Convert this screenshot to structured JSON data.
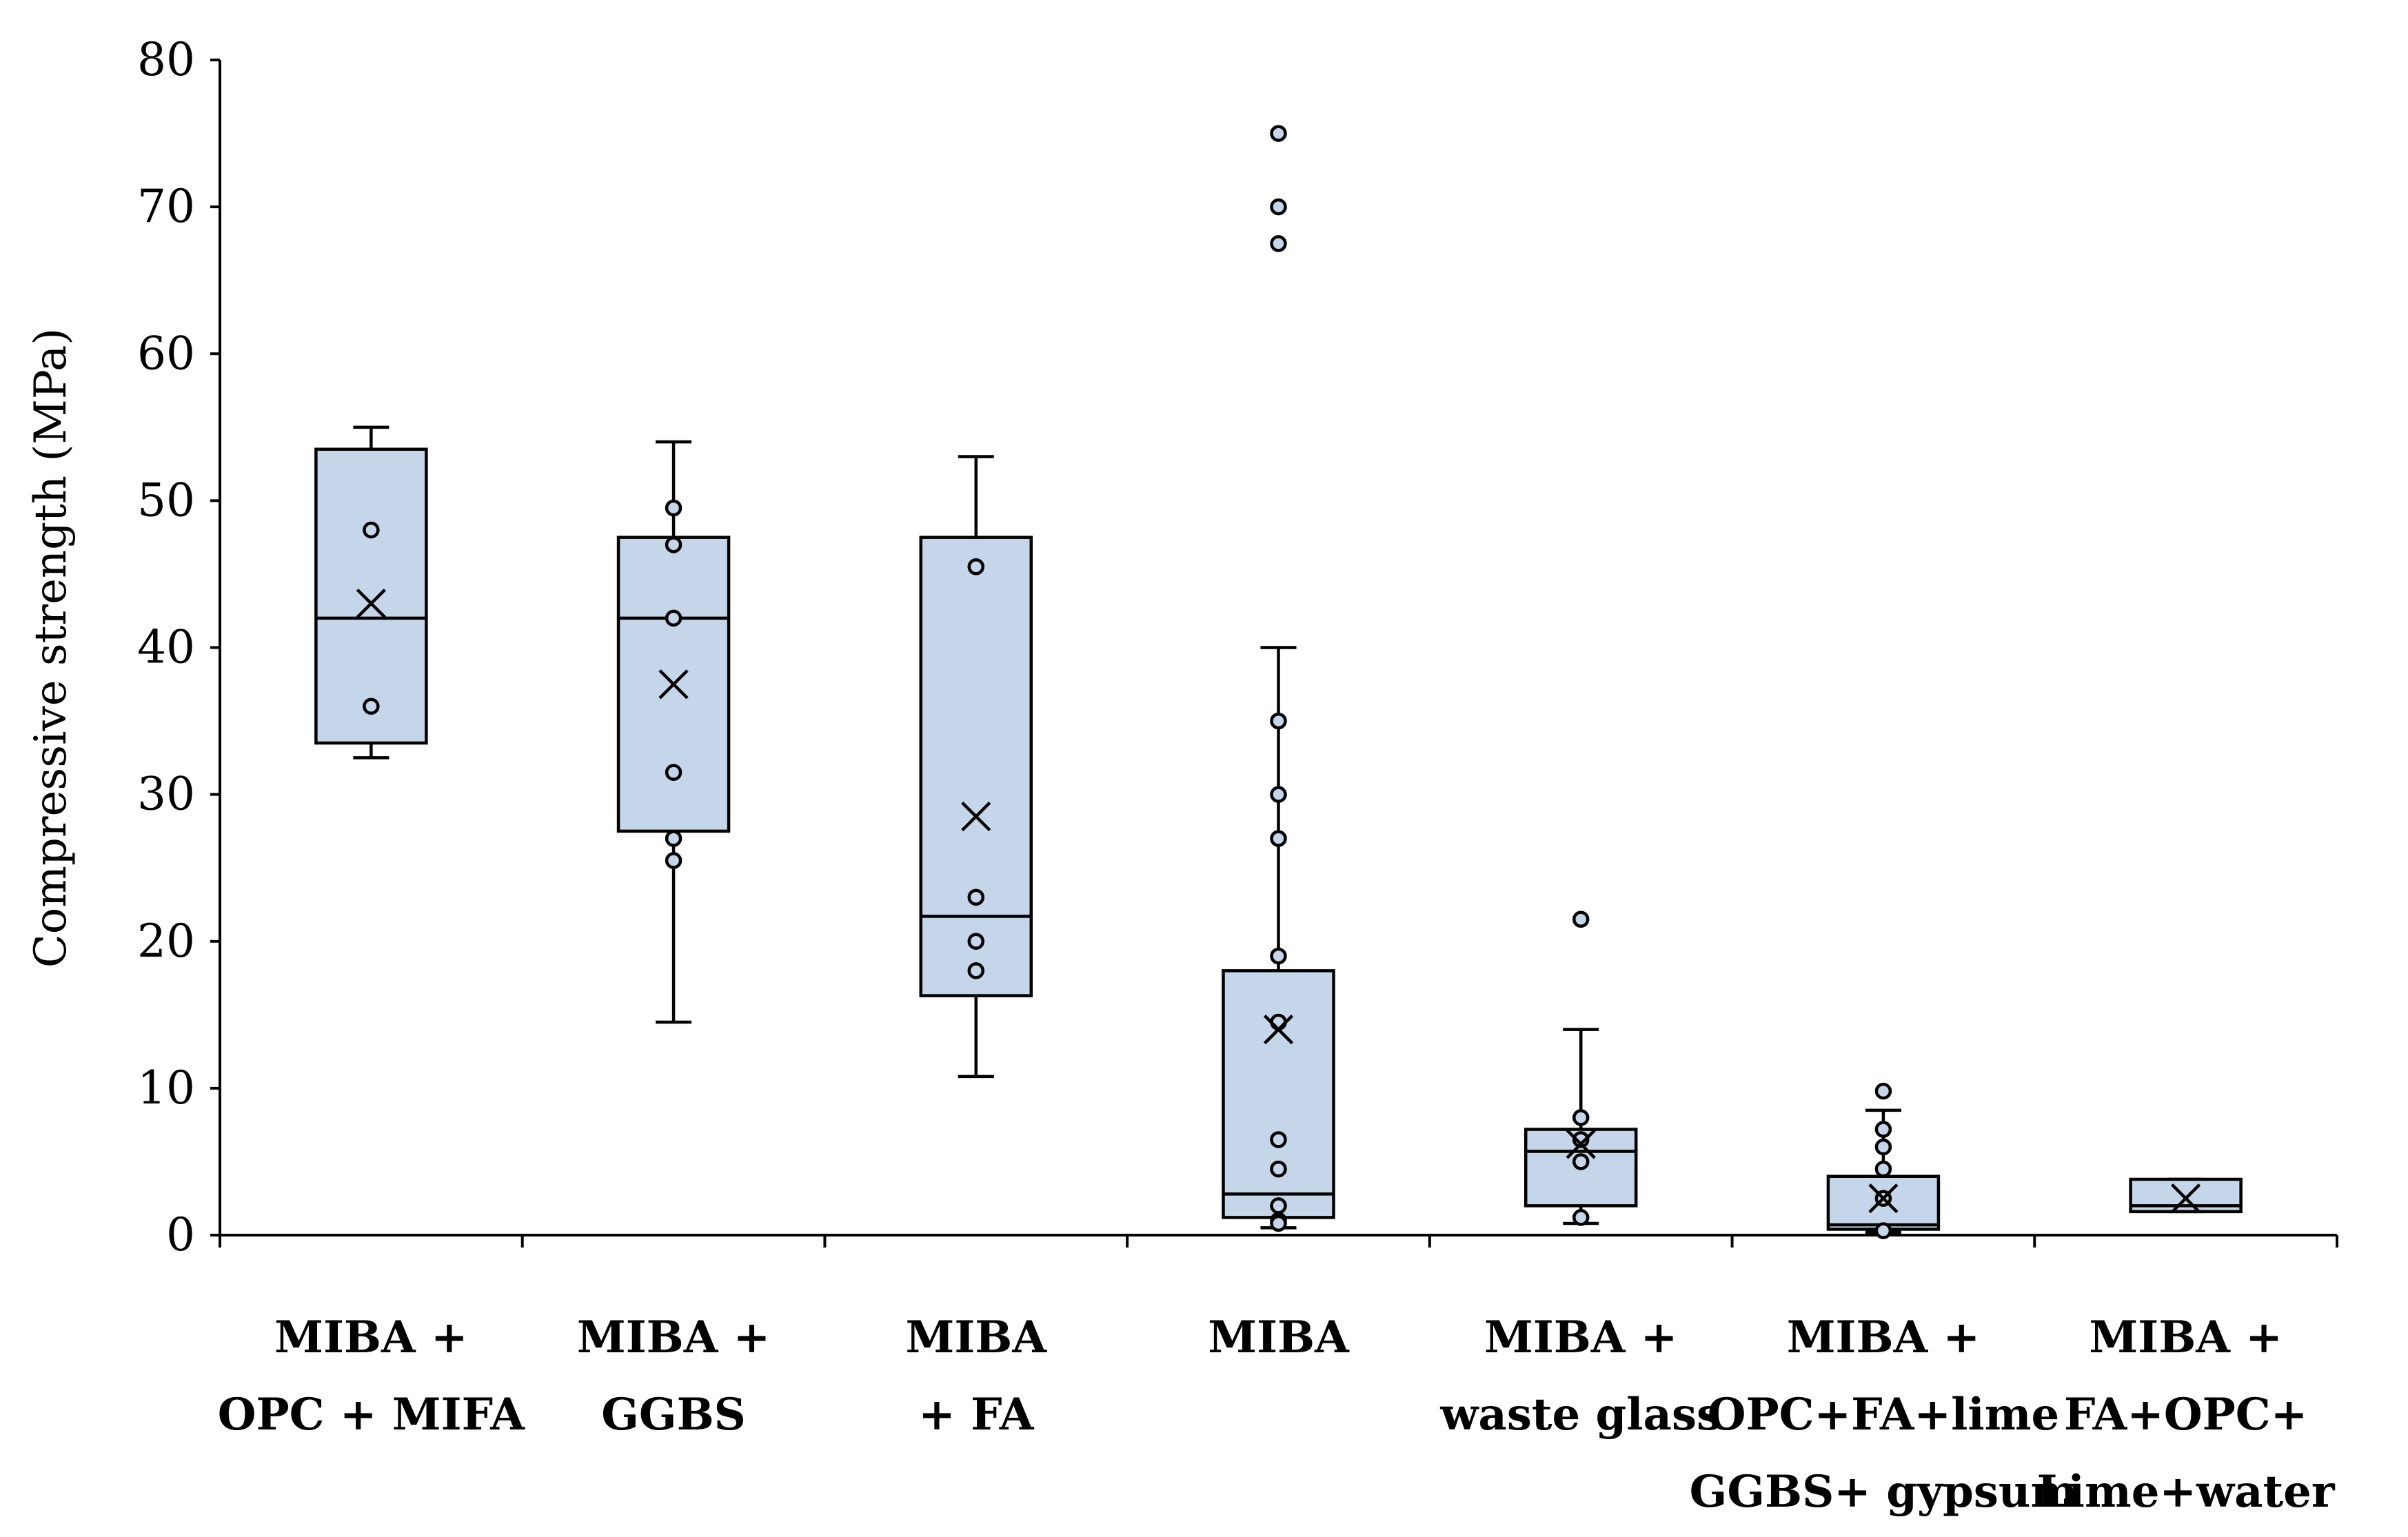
{
  "chart_data": {
    "type": "box",
    "title": "",
    "xlabel": "",
    "ylabel": "Compressive strength (MPa)",
    "ylim": [
      0,
      80
    ],
    "yticks": [
      0,
      10,
      20,
      30,
      40,
      50,
      60,
      70,
      80
    ],
    "grid": false,
    "colors": {
      "box_fill": "#c6d6ea",
      "stroke": "#000000"
    },
    "categories": [
      {
        "lines": [
          "MIBA +",
          "OPC + MIFA"
        ],
        "whisker_low": 32.5,
        "q1": 33.5,
        "median": 42,
        "q3": 53.5,
        "whisker_high": 55,
        "mean": 43,
        "points": [
          48,
          36
        ]
      },
      {
        "lines": [
          "MIBA +",
          "GGBS"
        ],
        "whisker_low": 14.5,
        "q1": 27.5,
        "median": 42,
        "q3": 47.5,
        "whisker_high": 54,
        "mean": 37.5,
        "points": [
          49.5,
          47,
          42,
          31.5,
          27,
          25.5
        ]
      },
      {
        "lines": [
          "MIBA",
          "+ FA"
        ],
        "whisker_low": 10.8,
        "q1": 16.3,
        "median": 21.7,
        "q3": 47.5,
        "whisker_high": 53,
        "mean": 28.5,
        "points": [
          45.5,
          23,
          20,
          18
        ]
      },
      {
        "lines": [
          "MIBA"
        ],
        "whisker_low": 0.5,
        "q1": 1.2,
        "median": 2.8,
        "q3": 18,
        "whisker_high": 40,
        "mean": 14,
        "points": [
          75,
          70,
          67.5,
          35,
          30,
          27,
          19,
          14.5,
          6.5,
          4.5,
          2,
          1,
          0.8
        ]
      },
      {
        "lines": [
          "MIBA +",
          "waste glass"
        ],
        "whisker_low": 0.8,
        "q1": 2,
        "median": 5.7,
        "q3": 7.2,
        "whisker_high": 14,
        "mean": 6.2,
        "points": [
          21.5,
          8,
          6.5,
          5,
          1.2
        ]
      },
      {
        "lines": [
          "MIBA +",
          "OPC+FA+lime",
          "GGBS+ gypsum"
        ],
        "whisker_low": 0.2,
        "q1": 0.4,
        "median": 0.7,
        "q3": 4,
        "whisker_high": 8.5,
        "mean": 2.5,
        "points": [
          9.8,
          7.2,
          6,
          4.5,
          2.5,
          0.3
        ]
      },
      {
        "lines": [
          "MIBA +",
          "FA+OPC+",
          "Lime+water"
        ],
        "whisker_low": 1.6,
        "q1": 1.6,
        "median": 2,
        "q3": 3.8,
        "whisker_high": 3.8,
        "mean": 2.5,
        "points": []
      }
    ]
  }
}
